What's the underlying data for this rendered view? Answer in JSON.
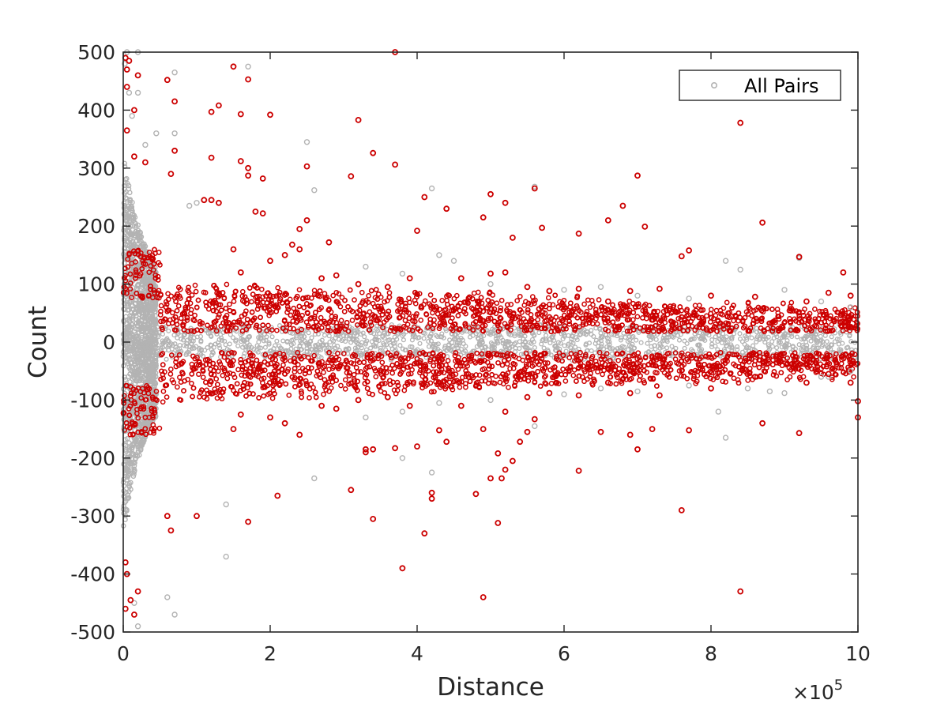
{
  "chart_data": {
    "type": "scatter",
    "xlabel": "Distance",
    "ylabel": "Count",
    "xlim": [
      0,
      1000000
    ],
    "ylim": [
      -500,
      500
    ],
    "x_exponent_base": "×10",
    "x_exponent_power": "5",
    "x_ticks": [
      0,
      200000,
      400000,
      600000,
      800000,
      1000000
    ],
    "x_tick_labels": [
      "0",
      "2",
      "4",
      "6",
      "8",
      "10"
    ],
    "y_ticks": [
      500,
      400,
      300,
      200,
      100,
      0,
      -100,
      -200,
      -300,
      -400,
      -500
    ],
    "y_tick_labels": [
      "500",
      "400",
      "300",
      "200",
      "100",
      "0",
      "-100",
      "-200",
      "-300",
      "-400",
      "-500"
    ],
    "grid": false,
    "box": true,
    "legend": {
      "entries": [
        "All Pairs"
      ],
      "placement": "top-right"
    },
    "colors": {
      "all_pairs": "#b3b3b3",
      "highlight": "#cc0000",
      "axis": "#262626"
    },
    "series": [
      {
        "name": "All Pairs",
        "marker": "open-circle",
        "color": "#b3b3b3",
        "points": [
          [
            2000,
            480
          ],
          [
            5000,
            500
          ],
          [
            8000,
            430
          ],
          [
            12000,
            390
          ],
          [
            20000,
            500
          ],
          [
            20000,
            430
          ],
          [
            30000,
            340
          ],
          [
            45000,
            360
          ],
          [
            70000,
            465
          ],
          [
            70000,
            360
          ],
          [
            90000,
            235
          ],
          [
            100000,
            240
          ],
          [
            130000,
            240
          ],
          [
            170000,
            475
          ],
          [
            250000,
            345
          ],
          [
            260000,
            262
          ],
          [
            420000,
            265
          ],
          [
            560000,
            268
          ],
          [
            450000,
            140
          ],
          [
            820000,
            140
          ],
          [
            840000,
            125
          ],
          [
            900000,
            90
          ],
          [
            920000,
            145
          ],
          [
            5000,
            -400
          ],
          [
            15000,
            -450
          ],
          [
            20000,
            -490
          ],
          [
            60000,
            -440
          ],
          [
            70000,
            -470
          ],
          [
            140000,
            -280
          ],
          [
            140000,
            -370
          ],
          [
            260000,
            -235
          ],
          [
            420000,
            -225
          ],
          [
            380000,
            -200
          ],
          [
            560000,
            -145
          ],
          [
            810000,
            -120
          ],
          [
            820000,
            -165
          ],
          [
            850000,
            -80
          ],
          [
            900000,
            -88
          ],
          [
            880000,
            -85
          ],
          [
            960000,
            -60
          ],
          [
            330000,
            130
          ],
          [
            380000,
            118
          ],
          [
            430000,
            150
          ],
          [
            500000,
            100
          ],
          [
            600000,
            90
          ],
          [
            650000,
            95
          ],
          [
            700000,
            80
          ],
          [
            770000,
            75
          ],
          [
            950000,
            70
          ],
          [
            990000,
            60
          ],
          [
            330000,
            -130
          ],
          [
            380000,
            -120
          ],
          [
            430000,
            -105
          ],
          [
            500000,
            -100
          ],
          [
            600000,
            -90
          ],
          [
            650000,
            -80
          ],
          [
            700000,
            -85
          ],
          [
            770000,
            -75
          ],
          [
            950000,
            -60
          ],
          [
            990000,
            -50
          ]
        ]
      },
      {
        "name": "",
        "marker": "open-circle",
        "color": "#cc0000",
        "points": [
          [
            3000,
            490
          ],
          [
            8000,
            485
          ],
          [
            5000,
            470
          ],
          [
            5000,
            440
          ],
          [
            5000,
            365
          ],
          [
            15000,
            400
          ],
          [
            20000,
            460
          ],
          [
            15000,
            320
          ],
          [
            30000,
            310
          ],
          [
            60000,
            452
          ],
          [
            70000,
            415
          ],
          [
            70000,
            330
          ],
          [
            65000,
            290
          ],
          [
            150000,
            475
          ],
          [
            170000,
            453
          ],
          [
            120000,
            397
          ],
          [
            130000,
            408
          ],
          [
            160000,
            393
          ],
          [
            200000,
            392
          ],
          [
            120000,
            318
          ],
          [
            160000,
            312
          ],
          [
            170000,
            300
          ],
          [
            170000,
            287
          ],
          [
            190000,
            282
          ],
          [
            250000,
            303
          ],
          [
            320000,
            383
          ],
          [
            370000,
            500
          ],
          [
            340000,
            326
          ],
          [
            370000,
            306
          ],
          [
            310000,
            286
          ],
          [
            410000,
            250
          ],
          [
            440000,
            230
          ],
          [
            490000,
            215
          ],
          [
            500000,
            255
          ],
          [
            520000,
            240
          ],
          [
            560000,
            265
          ],
          [
            570000,
            197
          ],
          [
            530000,
            180
          ],
          [
            620000,
            187
          ],
          [
            660000,
            210
          ],
          [
            680000,
            235
          ],
          [
            700000,
            287
          ],
          [
            710000,
            199
          ],
          [
            760000,
            148
          ],
          [
            770000,
            158
          ],
          [
            840000,
            378
          ],
          [
            870000,
            206
          ],
          [
            920000,
            147
          ],
          [
            980000,
            120
          ],
          [
            400000,
            192
          ],
          [
            110000,
            245
          ],
          [
            120000,
            245
          ],
          [
            130000,
            240
          ],
          [
            180000,
            225
          ],
          [
            190000,
            222
          ],
          [
            230000,
            168
          ],
          [
            240000,
            195
          ],
          [
            250000,
            210
          ],
          [
            280000,
            172
          ],
          [
            3000,
            -380
          ],
          [
            5000,
            -400
          ],
          [
            3000,
            -460
          ],
          [
            10000,
            -445
          ],
          [
            15000,
            -470
          ],
          [
            20000,
            -430
          ],
          [
            60000,
            -300
          ],
          [
            65000,
            -325
          ],
          [
            100000,
            -300
          ],
          [
            170000,
            -310
          ],
          [
            210000,
            -265
          ],
          [
            340000,
            -305
          ],
          [
            380000,
            -390
          ],
          [
            490000,
            -440
          ],
          [
            510000,
            -312
          ],
          [
            410000,
            -330
          ],
          [
            420000,
            -260
          ],
          [
            420000,
            -270
          ],
          [
            310000,
            -255
          ],
          [
            330000,
            -190
          ],
          [
            330000,
            -185
          ],
          [
            340000,
            -185
          ],
          [
            370000,
            -183
          ],
          [
            400000,
            -180
          ],
          [
            430000,
            -152
          ],
          [
            440000,
            -172
          ],
          [
            480000,
            -262
          ],
          [
            490000,
            -150
          ],
          [
            500000,
            -235
          ],
          [
            510000,
            -192
          ],
          [
            515000,
            -235
          ],
          [
            520000,
            -220
          ],
          [
            530000,
            -205
          ],
          [
            540000,
            -172
          ],
          [
            550000,
            -155
          ],
          [
            560000,
            -133
          ],
          [
            620000,
            -222
          ],
          [
            650000,
            -155
          ],
          [
            690000,
            -160
          ],
          [
            700000,
            -185
          ],
          [
            720000,
            -150
          ],
          [
            760000,
            -290
          ],
          [
            770000,
            -152
          ],
          [
            840000,
            -430
          ],
          [
            870000,
            -140
          ],
          [
            920000,
            -157
          ],
          [
            1000000,
            -130
          ],
          [
            1000000,
            -102
          ],
          [
            990000,
            -70
          ],
          [
            150000,
            160
          ],
          [
            160000,
            120
          ],
          [
            200000,
            140
          ],
          [
            220000,
            150
          ],
          [
            240000,
            160
          ],
          [
            270000,
            110
          ],
          [
            290000,
            115
          ],
          [
            320000,
            100
          ],
          [
            360000,
            95
          ],
          [
            390000,
            110
          ],
          [
            460000,
            110
          ],
          [
            500000,
            118
          ],
          [
            520000,
            120
          ],
          [
            550000,
            95
          ],
          [
            580000,
            88
          ],
          [
            620000,
            92
          ],
          [
            660000,
            70
          ],
          [
            690000,
            88
          ],
          [
            730000,
            92
          ],
          [
            800000,
            80
          ],
          [
            860000,
            78
          ],
          [
            930000,
            70
          ],
          [
            960000,
            85
          ],
          [
            990000,
            80
          ],
          [
            150000,
            -150
          ],
          [
            160000,
            -125
          ],
          [
            200000,
            -130
          ],
          [
            220000,
            -140
          ],
          [
            240000,
            -160
          ],
          [
            270000,
            -110
          ],
          [
            290000,
            -115
          ],
          [
            320000,
            -100
          ],
          [
            360000,
            -95
          ],
          [
            390000,
            -110
          ],
          [
            460000,
            -110
          ],
          [
            520000,
            -120
          ],
          [
            550000,
            -95
          ],
          [
            580000,
            -88
          ],
          [
            620000,
            -92
          ],
          [
            660000,
            -70
          ],
          [
            690000,
            -88
          ],
          [
            730000,
            -92
          ],
          [
            800000,
            -80
          ],
          [
            860000,
            -60
          ],
          [
            930000,
            -70
          ],
          [
            960000,
            -55
          ]
        ]
      }
    ]
  }
}
